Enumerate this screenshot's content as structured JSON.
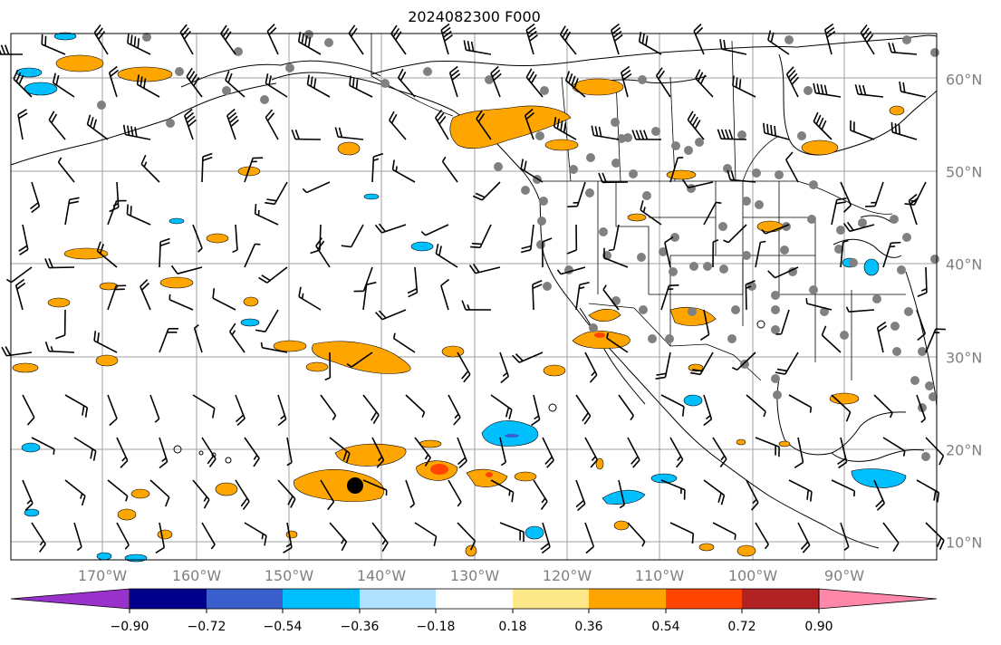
{
  "title": "2024082300 F000",
  "lon_labels": [
    "170°W",
    "160°W",
    "150°W",
    "140°W",
    "130°W",
    "120°W",
    "110°W",
    "100°W",
    "90°W"
  ],
  "lat_labels": [
    "60°N",
    "50°N",
    "40°N",
    "30°N",
    "20°N",
    "10°N"
  ],
  "colorbar": {
    "colors": [
      "#9932cc",
      "#00008b",
      "#3a5fcd",
      "#00bfff",
      "#b0e2ff",
      "#ffffff",
      "#fde98a",
      "#ffa500",
      "#ff4500",
      "#b22222",
      "#ff88aa"
    ],
    "ticks": [
      "−0.90",
      "−0.72",
      "−0.54",
      "−0.36",
      "−0.18",
      "0.18",
      "0.36",
      "0.54",
      "0.72",
      "0.90"
    ]
  },
  "colors": {
    "positive_fill": "#ffa500",
    "strong_positive_fill": "#ff4500",
    "negative_fill": "#00bfff",
    "station_dot": "#808080",
    "gridline": "#a0a0a0"
  }
}
